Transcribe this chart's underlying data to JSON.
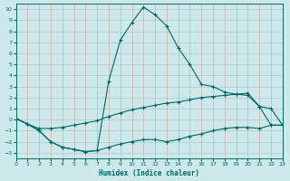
{
  "xlabel": "Humidex (Indice chaleur)",
  "bg_color": "#cce8e8",
  "grid_color": "#aacccc",
  "line_color": "#006666",
  "xlim": [
    0,
    23
  ],
  "ylim": [
    -3.5,
    10.5
  ],
  "yticks": [
    -3,
    -2,
    -1,
    0,
    1,
    2,
    3,
    4,
    5,
    6,
    7,
    8,
    9,
    10
  ],
  "xticks": [
    0,
    1,
    2,
    3,
    4,
    5,
    6,
    7,
    8,
    9,
    10,
    11,
    12,
    13,
    14,
    15,
    16,
    17,
    18,
    19,
    20,
    21,
    22,
    23
  ],
  "lines": [
    {
      "x": [
        0,
        1,
        2,
        3,
        4,
        5,
        6,
        7,
        8,
        9,
        10,
        11,
        12,
        13,
        14,
        15,
        16,
        17,
        18,
        19,
        20,
        21,
        22,
        23
      ],
      "y": [
        0.1,
        -0.4,
        -1.0,
        -2.0,
        -2.5,
        -2.7,
        -2.9,
        -2.8,
        -2.5,
        -2.2,
        -2.0,
        -1.8,
        -1.8,
        -2.0,
        -1.8,
        -1.5,
        -1.3,
        -1.0,
        -0.8,
        -0.7,
        -0.7,
        -0.8,
        -0.5,
        -0.5
      ]
    },
    {
      "x": [
        0,
        1,
        2,
        3,
        4,
        5,
        6,
        7,
        8,
        9,
        10,
        11,
        12,
        13,
        14,
        15,
        16,
        17,
        18,
        19,
        20,
        21,
        22,
        23
      ],
      "y": [
        0.1,
        -0.4,
        -0.8,
        -0.8,
        -0.7,
        -0.5,
        -0.3,
        -0.1,
        0.3,
        0.6,
        0.9,
        1.1,
        1.3,
        1.5,
        1.6,
        1.8,
        2.0,
        2.1,
        2.2,
        2.3,
        2.4,
        1.2,
        1.0,
        -0.5
      ]
    },
    {
      "x": [
        0,
        1,
        2,
        3,
        4,
        5,
        6,
        7,
        8,
        9,
        10,
        11,
        12,
        13,
        14,
        15,
        16,
        17,
        18,
        19,
        20,
        21,
        22,
        23
      ],
      "y": [
        0.1,
        -0.4,
        -1.0,
        -2.0,
        -2.5,
        -2.7,
        -2.9,
        -2.8,
        3.5,
        7.2,
        8.8,
        10.2,
        9.5,
        8.5,
        6.5,
        5.0,
        3.2,
        3.0,
        2.5,
        2.3,
        2.2,
        1.2,
        -0.5,
        -0.5
      ]
    }
  ]
}
